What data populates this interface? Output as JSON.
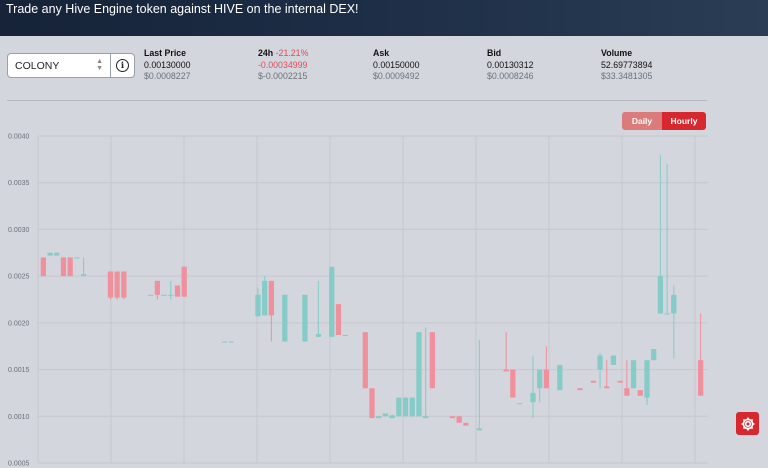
{
  "banner": {
    "text": "Trade any Hive Engine token against HIVE on the internal DEX!"
  },
  "token_select": {
    "value": "COLONY",
    "arrows_icon": "updown-chevron-icon",
    "info_icon": "info-icon"
  },
  "stats": {
    "last_price": {
      "label": "Last Price",
      "hive": "0.00130000",
      "usd": "$0.0008227"
    },
    "change_24h": {
      "label": "24h",
      "pct": "-21.21%",
      "hive": "-0.00034999",
      "usd": "$-0.0002215"
    },
    "ask": {
      "label": "Ask",
      "hive": "0.00150000",
      "usd": "$0.0009492"
    },
    "bid": {
      "label": "Bid",
      "hive": "0.00130312",
      "usd": "$0.0008246"
    },
    "volume": {
      "label": "Volume",
      "hive": "52.69773894",
      "usd": "$33.3481305"
    }
  },
  "interval_toggle": {
    "daily": "Daily",
    "hourly": "Hourly",
    "selected": "Hourly"
  },
  "settings_icon": "gear-icon",
  "colors": {
    "up": "#85cbc8",
    "down": "#f0909d",
    "accent": "#d7282f",
    "negative": "#e14b55"
  },
  "chart_data": {
    "type": "candlestick",
    "ylim": [
      0.0005,
      0.004
    ],
    "yticks": [
      "0.0040",
      "0.0035",
      "0.0030",
      "0.0025",
      "0.0020",
      "0.0015",
      "0.0010",
      "0.0005"
    ],
    "candles": [
      {
        "o": 0.0027,
        "h": 0.0027,
        "l": 0.0025,
        "c": 0.0025
      },
      {
        "o": 0.00272,
        "h": 0.00275,
        "l": 0.00272,
        "c": 0.00275
      },
      {
        "o": 0.00272,
        "h": 0.00275,
        "l": 0.00272,
        "c": 0.00275
      },
      {
        "o": 0.0027,
        "h": 0.0027,
        "l": 0.0025,
        "c": 0.0025
      },
      {
        "o": 0.0027,
        "h": 0.0027,
        "l": 0.0025,
        "c": 0.0025
      },
      {
        "o": 0.0027,
        "h": 0.0027,
        "l": 0.0027,
        "c": 0.0027
      },
      {
        "o": 0.0025,
        "h": 0.0027,
        "l": 0.0025,
        "c": 0.00252
      },
      null,
      null,
      null,
      {
        "o": 0.00255,
        "h": 0.00255,
        "l": 0.00225,
        "c": 0.00227
      },
      {
        "o": 0.00255,
        "h": 0.00255,
        "l": 0.00225,
        "c": 0.00227
      },
      {
        "o": 0.00255,
        "h": 0.00255,
        "l": 0.00225,
        "c": 0.00227
      },
      null,
      null,
      null,
      {
        "o": 0.0023,
        "h": 0.0023,
        "l": 0.0023,
        "c": 0.0023
      },
      {
        "o": 0.00245,
        "h": 0.00245,
        "l": 0.00225,
        "c": 0.0023
      },
      {
        "o": 0.0023,
        "h": 0.0023,
        "l": 0.0023,
        "c": 0.0023
      },
      {
        "o": 0.0023,
        "h": 0.00245,
        "l": 0.00225,
        "c": 0.0023
      },
      {
        "o": 0.0024,
        "h": 0.0024,
        "l": 0.00228,
        "c": 0.00228
      },
      {
        "o": 0.0026,
        "h": 0.0026,
        "l": 0.00228,
        "c": 0.00228
      },
      null,
      null,
      null,
      null,
      null,
      {
        "o": 0.0018,
        "h": 0.0018,
        "l": 0.0018,
        "c": 0.0018
      },
      {
        "o": 0.0018,
        "h": 0.0018,
        "l": 0.0018,
        "c": 0.0018
      },
      null,
      null,
      null,
      {
        "o": 0.00207,
        "h": 0.00237,
        "l": 0.00207,
        "c": 0.0023
      },
      {
        "o": 0.00208,
        "h": 0.0025,
        "l": 0.00208,
        "c": 0.00245
      },
      {
        "o": 0.00245,
        "h": 0.00245,
        "l": 0.0018,
        "c": 0.00208
      },
      null,
      {
        "o": 0.0018,
        "h": 0.0023,
        "l": 0.0018,
        "c": 0.0023
      },
      null,
      null,
      {
        "o": 0.0018,
        "h": 0.0023,
        "l": 0.0018,
        "c": 0.0023
      },
      null,
      {
        "o": 0.00185,
        "h": 0.00245,
        "l": 0.00185,
        "c": 0.00188
      },
      null,
      {
        "o": 0.00185,
        "h": 0.0026,
        "l": 0.00185,
        "c": 0.0026
      },
      {
        "o": 0.0022,
        "h": 0.0022,
        "l": 0.00187,
        "c": 0.00187
      },
      {
        "o": 0.00187,
        "h": 0.00187,
        "l": 0.00187,
        "c": 0.00187
      },
      null,
      null,
      {
        "o": 0.0019,
        "h": 0.0019,
        "l": 0.0013,
        "c": 0.0013
      },
      {
        "o": 0.0013,
        "h": 0.0013,
        "l": 0.00098,
        "c": 0.00098
      },
      {
        "o": 0.00098,
        "h": 0.001,
        "l": 0.00098,
        "c": 0.001
      },
      {
        "o": 0.001,
        "h": 0.00103,
        "l": 0.001,
        "c": 0.00103
      },
      {
        "o": 0.00098,
        "h": 0.00102,
        "l": 0.00098,
        "c": 0.00101
      },
      {
        "o": 0.001,
        "h": 0.0012,
        "l": 0.001,
        "c": 0.0012
      },
      {
        "o": 0.001,
        "h": 0.0012,
        "l": 0.001,
        "c": 0.0012
      },
      {
        "o": 0.001,
        "h": 0.0012,
        "l": 0.001,
        "c": 0.0012
      },
      {
        "o": 0.001,
        "h": 0.0019,
        "l": 0.001,
        "c": 0.0019
      },
      {
        "o": 0.00098,
        "h": 0.00195,
        "l": 0.00098,
        "c": 0.001
      },
      {
        "o": 0.0019,
        "h": 0.0019,
        "l": 0.0013,
        "c": 0.0013
      },
      null,
      null,
      {
        "o": 0.001,
        "h": 0.001,
        "l": 0.00098,
        "c": 0.00098
      },
      {
        "o": 0.001,
        "h": 0.001,
        "l": 0.00093,
        "c": 0.00093
      },
      {
        "o": 0.00093,
        "h": 0.00093,
        "l": 0.0009,
        "c": 0.0009
      },
      null,
      {
        "o": 0.00085,
        "h": 0.00182,
        "l": 0.00085,
        "c": 0.00087
      },
      null,
      null,
      null,
      {
        "o": 0.0015,
        "h": 0.0019,
        "l": 0.00148,
        "c": 0.00148
      },
      {
        "o": 0.0015,
        "h": 0.0015,
        "l": 0.0012,
        "c": 0.0012
      },
      {
        "o": 0.00114,
        "h": 0.00114,
        "l": 0.00114,
        "c": 0.00114
      },
      null,
      {
        "o": 0.00115,
        "h": 0.00165,
        "l": 0.00098,
        "c": 0.00125
      },
      {
        "o": 0.0013,
        "h": 0.0015,
        "l": 0.00115,
        "c": 0.0015
      },
      {
        "o": 0.0015,
        "h": 0.00175,
        "l": 0.0013,
        "c": 0.0013
      },
      null,
      {
        "o": 0.00128,
        "h": 0.00155,
        "l": 0.00128,
        "c": 0.00155
      },
      null,
      null,
      {
        "o": 0.0013,
        "h": 0.0013,
        "l": 0.0013,
        "c": 0.00128
      },
      null,
      {
        "o": 0.00138,
        "h": 0.00138,
        "l": 0.00136,
        "c": 0.00136
      },
      {
        "o": 0.0015,
        "h": 0.00168,
        "l": 0.0013,
        "c": 0.00165
      },
      {
        "o": 0.00132,
        "h": 0.0016,
        "l": 0.0013,
        "c": 0.0013
      },
      {
        "o": 0.00155,
        "h": 0.00165,
        "l": 0.00155,
        "c": 0.00165
      },
      {
        "o": 0.00138,
        "h": 0.00138,
        "l": 0.00136,
        "c": 0.00136
      },
      {
        "o": 0.0013,
        "h": 0.0016,
        "l": 0.00122,
        "c": 0.00122
      },
      {
        "o": 0.0013,
        "h": 0.0016,
        "l": 0.0013,
        "c": 0.0016
      },
      {
        "o": 0.00128,
        "h": 0.00128,
        "l": 0.00122,
        "c": 0.00122
      },
      {
        "o": 0.0012,
        "h": 0.0016,
        "l": 0.00112,
        "c": 0.0016
      },
      {
        "o": 0.0016,
        "h": 0.00172,
        "l": 0.0016,
        "c": 0.00172
      },
      {
        "o": 0.0021,
        "h": 0.0038,
        "l": 0.0021,
        "c": 0.0025
      },
      {
        "o": 0.0021,
        "h": 0.0037,
        "l": 0.0021,
        "c": 0.0021
      },
      {
        "o": 0.0021,
        "h": 0.0024,
        "l": 0.00162,
        "c": 0.0023
      },
      null,
      null,
      null,
      {
        "o": 0.0016,
        "h": 0.0021,
        "l": 0.00122,
        "c": 0.00122
      }
    ]
  }
}
